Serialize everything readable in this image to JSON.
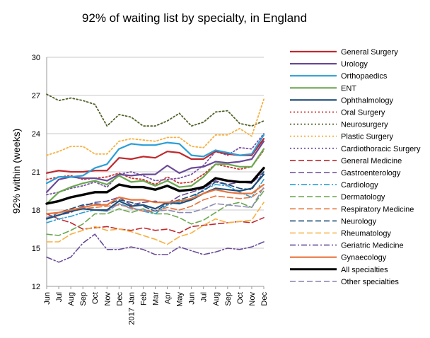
{
  "chart_data": {
    "type": "line",
    "title": "92% of waiting list by specialty, in England",
    "xlabel": "",
    "ylabel": "92% within (weeks)",
    "ylim": [
      12,
      30
    ],
    "yticks": [
      12,
      15,
      18,
      21,
      24,
      27,
      30
    ],
    "grid": "horizontal",
    "legend_position": "right",
    "x": [
      "Jun",
      "Jul",
      "Aug",
      "Sep",
      "Oct",
      "Nov",
      "Dec",
      "Jan 2017",
      "Feb",
      "Mar",
      "Apr",
      "May",
      "Jun",
      "Jul",
      "Aug",
      "Sep",
      "Oct",
      "Nov",
      "Dec"
    ],
    "x_tick_labels": [
      "Jun",
      "Jul",
      "Aug",
      "Sep",
      "Oct",
      "Nov",
      "Dec",
      "Jan",
      "Feb",
      "Mar",
      "Apr",
      "May",
      "Jun",
      "Jul",
      "Aug",
      "Sep",
      "Oct",
      "Nov",
      "Dec"
    ],
    "x_year_label": "2017",
    "series": [
      {
        "name": "General Surgery",
        "color": "#c0282d",
        "style": "solid",
        "width": 2.2,
        "values": [
          20.9,
          21.1,
          21.0,
          21.0,
          21.1,
          21.1,
          22.1,
          22.0,
          22.2,
          22.1,
          22.6,
          22.5,
          22.0,
          22.0,
          22.6,
          22.4,
          22.3,
          22.3,
          23.6
        ]
      },
      {
        "name": "Urology",
        "color": "#6a4b97",
        "style": "solid",
        "width": 2.2,
        "values": [
          19.4,
          20.4,
          20.6,
          20.5,
          20.5,
          20.3,
          20.8,
          20.7,
          20.8,
          20.8,
          21.5,
          20.9,
          21.3,
          21.4,
          21.8,
          21.7,
          21.8,
          22.0,
          23.4
        ]
      },
      {
        "name": "Orthopaedics",
        "color": "#2a9fd6",
        "style": "solid",
        "width": 2.2,
        "values": [
          20.1,
          20.6,
          20.6,
          20.7,
          21.3,
          21.6,
          22.8,
          23.2,
          23.1,
          23.1,
          23.3,
          23.2,
          22.3,
          22.2,
          22.7,
          22.5,
          22.3,
          22.4,
          23.9
        ]
      },
      {
        "name": "ENT",
        "color": "#6aa84f",
        "style": "solid",
        "width": 2.2,
        "values": [
          18.5,
          19.4,
          19.8,
          20.1,
          20.3,
          20.0,
          20.7,
          20.2,
          20.3,
          19.9,
          20.3,
          19.8,
          19.9,
          20.6,
          21.6,
          21.6,
          21.4,
          21.4,
          22.8
        ]
      },
      {
        "name": "Ophthalmology",
        "color": "#1f4e79",
        "style": "solid",
        "width": 2.2,
        "values": [
          17.3,
          17.6,
          17.9,
          18.1,
          18.0,
          18.0,
          18.7,
          18.3,
          18.4,
          18.1,
          18.6,
          18.5,
          18.8,
          19.3,
          19.7,
          19.6,
          19.5,
          19.7,
          20.8
        ]
      },
      {
        "name": "Oral Surgery",
        "color": "#d0312d",
        "style": "dotted",
        "width": 1.8,
        "values": [
          20.4,
          20.6,
          20.7,
          20.4,
          20.5,
          20.6,
          20.9,
          20.5,
          20.4,
          20.0,
          20.6,
          20.1,
          20.2,
          20.8,
          21.6,
          21.4,
          21.2,
          21.4,
          22.7
        ]
      },
      {
        "name": "Neurosurgery",
        "color": "#4f6228",
        "style": "dotted",
        "width": 1.8,
        "values": [
          27.1,
          26.6,
          26.8,
          26.6,
          26.3,
          24.6,
          25.5,
          25.3,
          24.6,
          24.6,
          25.0,
          25.6,
          24.6,
          24.9,
          25.7,
          25.8,
          24.8,
          24.6,
          25.0
        ]
      },
      {
        "name": "Plastic Surgery",
        "color": "#f7b042",
        "style": "dotted",
        "width": 1.8,
        "values": [
          22.3,
          22.6,
          23.0,
          23.0,
          22.4,
          22.4,
          23.4,
          23.6,
          23.5,
          23.4,
          23.7,
          23.7,
          23.0,
          22.9,
          23.9,
          23.9,
          24.4,
          23.8,
          26.7
        ]
      },
      {
        "name": "Cardiothoracic Surgery",
        "color": "#7a54a8",
        "style": "dotted",
        "width": 1.8,
        "values": [
          19.2,
          19.4,
          19.7,
          19.9,
          20.2,
          19.8,
          20.8,
          21.0,
          20.7,
          20.3,
          20.4,
          20.5,
          20.8,
          21.5,
          22.6,
          22.3,
          22.9,
          22.8,
          24.0
        ]
      },
      {
        "name": "General Medicine",
        "color": "#c0282d",
        "style": "dashed",
        "width": 1.6,
        "values": [
          17.7,
          17.3,
          17.0,
          16.5,
          16.6,
          16.7,
          16.5,
          16.4,
          16.6,
          16.4,
          16.5,
          16.2,
          16.7,
          16.8,
          16.9,
          17.0,
          17.1,
          17.0,
          17.4
        ]
      },
      {
        "name": "Gastroenterology",
        "color": "#6a4b97",
        "style": "dashed",
        "width": 1.6,
        "values": [
          17.4,
          17.6,
          17.8,
          18.3,
          18.6,
          18.7,
          19.0,
          18.4,
          18.6,
          18.7,
          18.5,
          19.1,
          19.4,
          19.7,
          20.3,
          20.0,
          20.2,
          20.1,
          21.0
        ]
      },
      {
        "name": "Cardiology",
        "color": "#2a9fd6",
        "style": "dashdot",
        "width": 1.6,
        "values": [
          17.0,
          17.3,
          17.5,
          17.8,
          18.0,
          17.9,
          18.5,
          18.2,
          17.9,
          17.7,
          18.4,
          18.6,
          18.9,
          19.6,
          20.0,
          19.9,
          19.4,
          19.0,
          20.4
        ]
      },
      {
        "name": "Dermatology",
        "color": "#6aa84f",
        "style": "dashed",
        "width": 1.6,
        "values": [
          16.1,
          16.0,
          16.4,
          16.9,
          17.7,
          17.7,
          18.1,
          17.8,
          18.1,
          17.7,
          17.7,
          17.4,
          16.9,
          17.2,
          17.8,
          18.4,
          18.6,
          18.2,
          19.5
        ]
      },
      {
        "name": "Respiratory Medicine",
        "color": "#e8743b",
        "style": "dashed",
        "width": 1.6,
        "values": [
          17.4,
          17.8,
          18.0,
          18.1,
          18.2,
          18.3,
          18.4,
          18.2,
          17.9,
          17.9,
          18.2,
          18.0,
          18.3,
          18.8,
          19.1,
          19.0,
          18.9,
          19.0,
          19.7
        ]
      },
      {
        "name": "Neurology",
        "color": "#1f4e79",
        "style": "dashed",
        "width": 1.6,
        "values": [
          17.3,
          17.8,
          18.1,
          18.4,
          18.5,
          18.4,
          18.8,
          18.6,
          18.3,
          17.9,
          18.5,
          18.8,
          19.1,
          19.5,
          20.2,
          20.0,
          19.7,
          19.6,
          21.0
        ]
      },
      {
        "name": "Rheumatology",
        "color": "#f7b042",
        "style": "dashed",
        "width": 1.6,
        "values": [
          15.5,
          15.5,
          16.1,
          16.4,
          16.7,
          16.4,
          16.5,
          16.3,
          16.0,
          15.7,
          15.3,
          15.9,
          16.2,
          16.8,
          17.3,
          17.0,
          17.1,
          17.2,
          18.6
        ]
      },
      {
        "name": "Geriatric Medicine",
        "color": "#6a4b97",
        "style": "dashdot",
        "width": 1.6,
        "values": [
          14.3,
          13.9,
          14.3,
          15.4,
          16.1,
          14.9,
          14.9,
          15.1,
          14.9,
          14.5,
          14.5,
          15.1,
          14.8,
          14.5,
          14.7,
          15.0,
          14.9,
          15.1,
          15.5
        ]
      },
      {
        "name": "Gynaecology",
        "color": "#e8743b",
        "style": "solid",
        "width": 2.2,
        "values": [
          17.7,
          17.8,
          18.0,
          18.2,
          18.4,
          18.4,
          19.0,
          18.8,
          18.8,
          18.6,
          18.6,
          18.7,
          18.9,
          19.3,
          19.6,
          19.4,
          19.3,
          19.3,
          20.0
        ]
      },
      {
        "name": "All specialties",
        "color": "#000000",
        "style": "solid",
        "width": 3.4,
        "values": [
          18.5,
          18.7,
          19.0,
          19.2,
          19.4,
          19.4,
          20.0,
          19.8,
          19.8,
          19.6,
          19.9,
          19.5,
          19.6,
          19.8,
          20.5,
          20.3,
          20.2,
          20.2,
          21.3
        ]
      },
      {
        "name": "Other specialties",
        "color": "#8b8bb5",
        "style": "dashed",
        "width": 1.6,
        "values": [
          17.4,
          17.8,
          17.9,
          18.1,
          18.0,
          17.9,
          18.5,
          18.1,
          18.0,
          17.9,
          18.0,
          17.8,
          17.8,
          18.1,
          18.5,
          18.4,
          18.3,
          18.2,
          19.8
        ]
      }
    ]
  }
}
